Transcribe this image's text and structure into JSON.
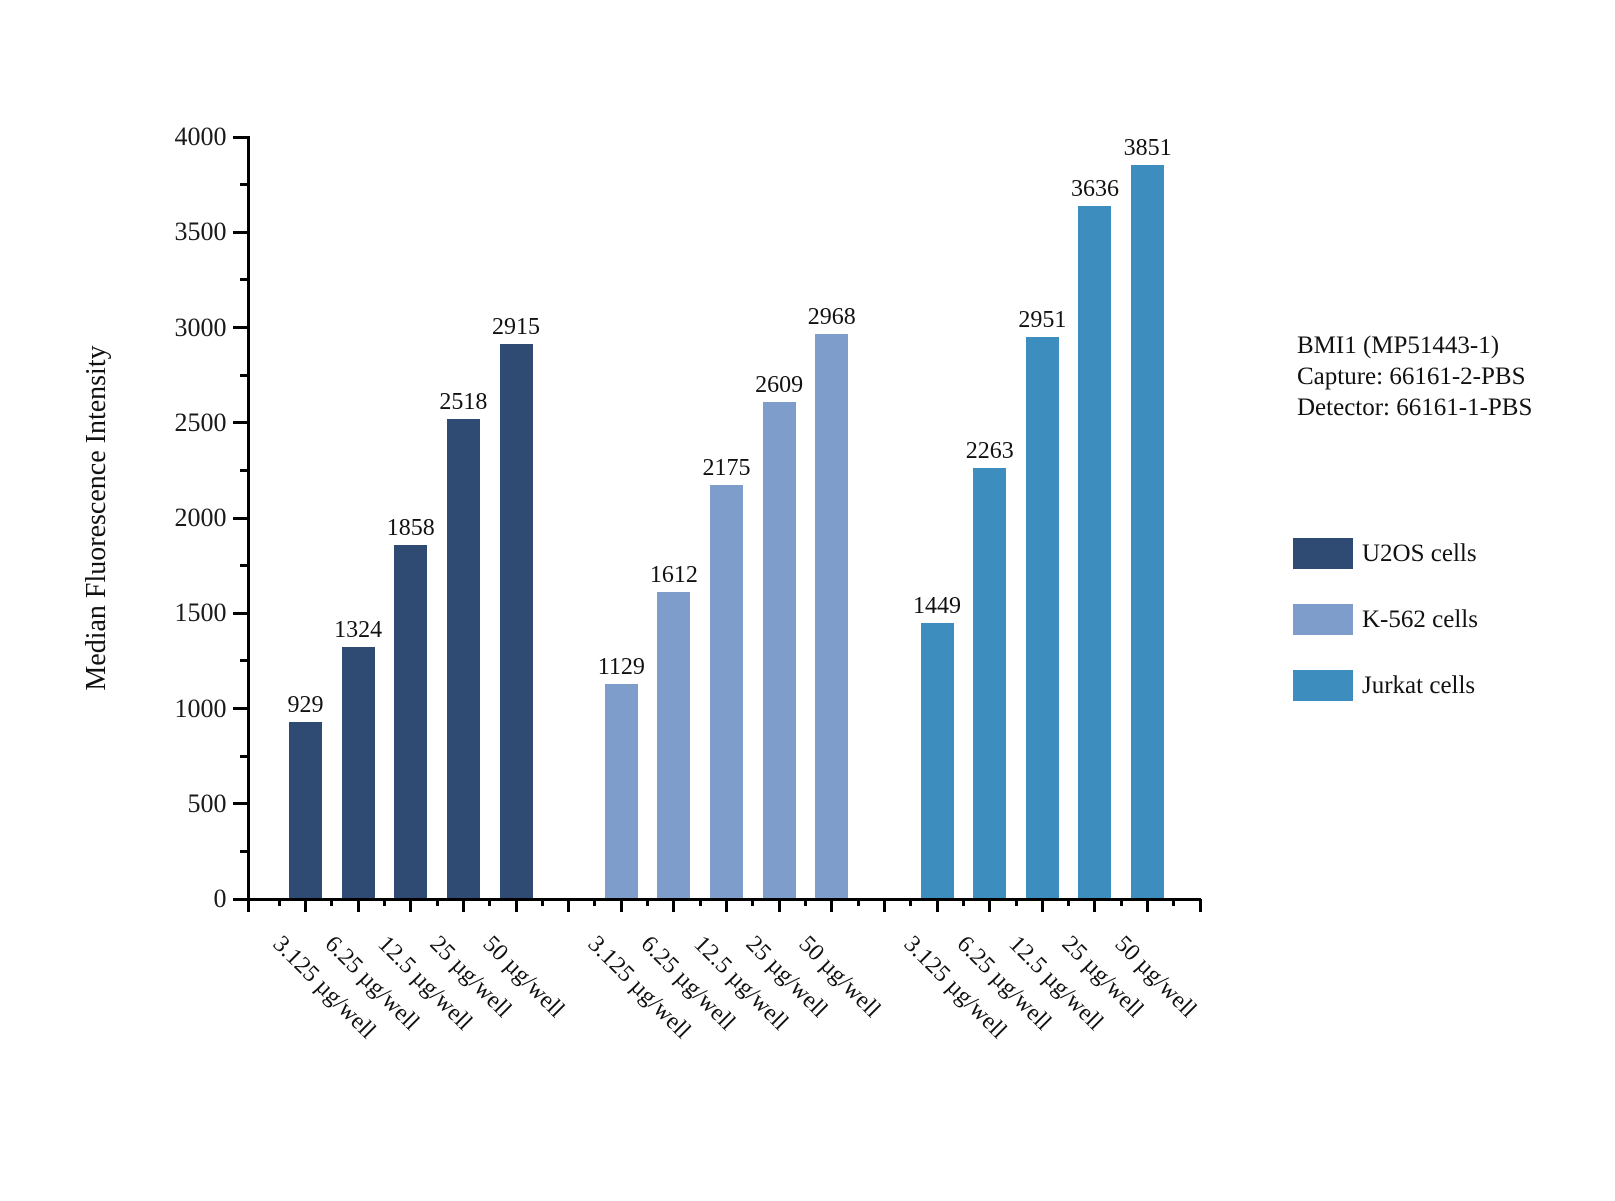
{
  "chart_data": {
    "type": "bar",
    "title": "",
    "xlabel": "",
    "ylabel": "Median Fluorescence Intensity",
    "ylim": [
      0,
      4000
    ],
    "ytick_step": 500,
    "yminor_step": 250,
    "ytick_labels": [
      "0",
      "500",
      "1000",
      "1500",
      "2000",
      "2500",
      "3000",
      "3500",
      "4000"
    ],
    "grid": false,
    "legend_position": "right",
    "bar_value_labels": true,
    "categories": [
      "3.125 µg/well",
      "6.25 µg/well",
      "12.5 µg/well",
      "25 µg/well",
      "50 µg/well"
    ],
    "series": [
      {
        "name": "U2OS cells",
        "color": "#2F4B74",
        "values": [
          929,
          1324,
          1858,
          2518,
          2915
        ]
      },
      {
        "name": "K-562 cells",
        "color": "#7F9DCB",
        "values": [
          1129,
          1612,
          2175,
          2609,
          2968
        ]
      },
      {
        "name": "Jurkat cells",
        "color": "#3D8DBE",
        "values": [
          1449,
          2263,
          2951,
          3636,
          3851
        ]
      }
    ],
    "annotation": {
      "lines": [
        "BMI1 (MP51443-1)",
        "Capture: 66161-2-PBS",
        "Detector: 66161-1-PBS"
      ]
    }
  }
}
